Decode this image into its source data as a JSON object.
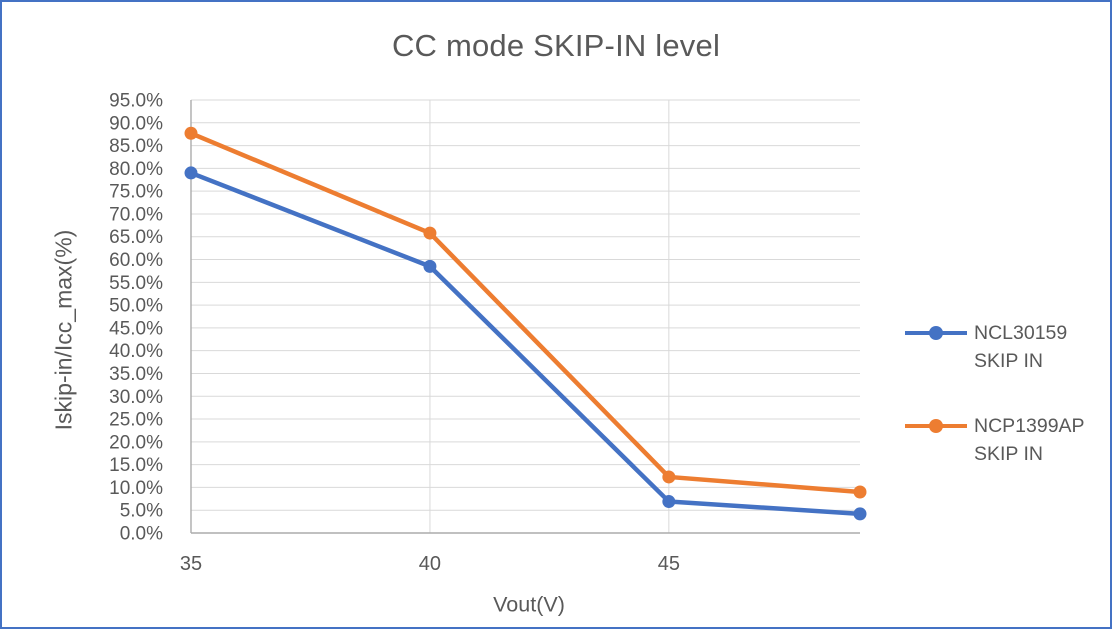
{
  "window": {
    "background": "#FFFFFF",
    "border_color": "#4472C4"
  },
  "chart_data": {
    "type": "line",
    "title": "CC mode SKIP-IN level",
    "xlabel": "Vout(V)",
    "ylabel": "Iskip-in/Icc_max(%)",
    "xlim": [
      35,
      49
    ],
    "ylim": [
      0,
      95
    ],
    "grid": true,
    "legend_position": "right",
    "gridline_color": "#D9D9D9",
    "axis_line_color": "#ACACAC",
    "tick_label_color": "#595959",
    "xticks": {
      "values": [
        35,
        40,
        45
      ],
      "labels": [
        "35",
        "40",
        "45"
      ]
    },
    "yticks": {
      "values": [
        0,
        5,
        10,
        15,
        20,
        25,
        30,
        35,
        40,
        45,
        50,
        55,
        60,
        65,
        70,
        75,
        80,
        85,
        90,
        95
      ],
      "labels": [
        "0.0%",
        "5.0%",
        "10.0%",
        "15.0%",
        "20.0%",
        "25.0%",
        "30.0%",
        "35.0%",
        "40.0%",
        "45.0%",
        "50.0%",
        "55.0%",
        "60.0%",
        "65.0%",
        "70.0%",
        "75.0%",
        "80.0%",
        "85.0%",
        "90.0%",
        "95.0%"
      ],
      "note": "percent of Icc_max"
    },
    "x": [
      35,
      40,
      45,
      49
    ],
    "series": [
      {
        "name": "NCL30159 SKIP IN",
        "color": "#4472C4",
        "values": [
          79.0,
          58.5,
          6.9,
          4.2
        ]
      },
      {
        "name": "NCP1399AP SKIP IN",
        "color": "#ED7D31",
        "values": [
          87.7,
          65.8,
          12.3,
          9.0
        ]
      }
    ]
  }
}
